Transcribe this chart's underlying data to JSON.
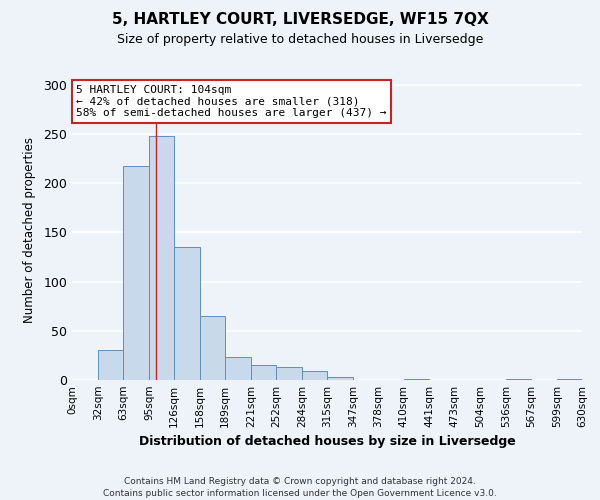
{
  "title": "5, HARTLEY COURT, LIVERSEDGE, WF15 7QX",
  "subtitle": "Size of property relative to detached houses in Liversedge",
  "xlabel": "Distribution of detached houses by size in Liversedge",
  "ylabel": "Number of detached properties",
  "bar_values": [
    0,
    30,
    218,
    248,
    135,
    65,
    23,
    15,
    13,
    9,
    3,
    0,
    0,
    1,
    0,
    0,
    0,
    1,
    0,
    1
  ],
  "bin_edges": [
    0,
    32,
    63,
    95,
    126,
    158,
    189,
    221,
    252,
    284,
    315,
    347,
    378,
    410,
    441,
    473,
    504,
    536,
    567,
    599,
    630
  ],
  "tick_labels": [
    "0sqm",
    "32sqm",
    "63sqm",
    "95sqm",
    "126sqm",
    "158sqm",
    "189sqm",
    "221sqm",
    "252sqm",
    "284sqm",
    "315sqm",
    "347sqm",
    "378sqm",
    "410sqm",
    "441sqm",
    "473sqm",
    "504sqm",
    "536sqm",
    "567sqm",
    "599sqm",
    "630sqm"
  ],
  "bar_color": "#c9d9ec",
  "bar_edge_color": "#5b8fc9",
  "property_line_x": 104,
  "annotation_line1": "5 HARTLEY COURT: 104sqm",
  "annotation_line2": "← 42% of detached houses are smaller (318)",
  "annotation_line3": "58% of semi-detached houses are larger (437) →",
  "ylim": [
    0,
    305
  ],
  "yticks": [
    0,
    50,
    100,
    150,
    200,
    250,
    300
  ],
  "footer_line1": "Contains HM Land Registry data © Crown copyright and database right 2024.",
  "footer_line2": "Contains public sector information licensed under the Open Government Licence v3.0.",
  "background_color": "#eef2f9",
  "grid_color": "#ffffff",
  "annotation_box_color": "#ffffff",
  "annotation_border_color": "#cc2222",
  "property_line_color": "#cc2222"
}
